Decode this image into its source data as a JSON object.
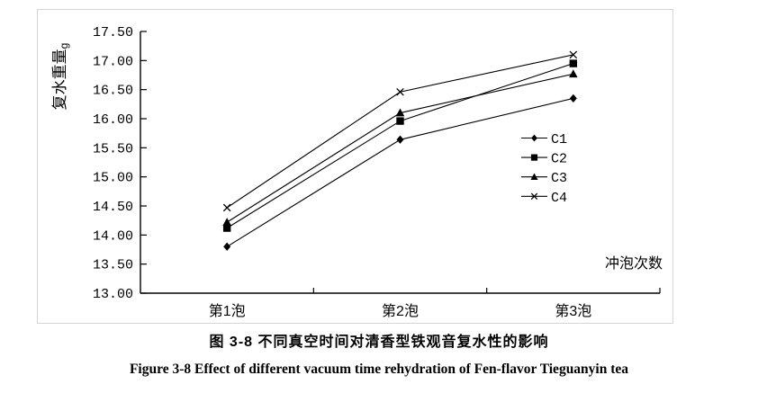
{
  "figure": {
    "caption_zh": "图 3-8  不同真空时间对清香型铁观音复水性的影响",
    "caption_en": "Figure 3-8 Effect of different vacuum time rehydration of Fen-flavor Tieguanyin tea"
  },
  "chart_data": {
    "type": "line",
    "title": "",
    "ylabel": "复水重量",
    "ylabel_unit": "g",
    "xlabel": "冲泡次数",
    "categories": [
      "第1泡",
      "第2泡",
      "第3泡"
    ],
    "series": [
      {
        "name": "C1",
        "marker": "diamond",
        "values": [
          13.8,
          15.64,
          16.35
        ]
      },
      {
        "name": "C2",
        "marker": "square",
        "values": [
          14.12,
          15.96,
          16.95
        ]
      },
      {
        "name": "C3",
        "marker": "triangle",
        "values": [
          14.22,
          16.1,
          16.77
        ]
      },
      {
        "name": "C4",
        "marker": "x",
        "values": [
          14.47,
          16.46,
          17.1
        ]
      }
    ],
    "ylim": [
      13.0,
      17.5
    ],
    "ytick_step": 0.5,
    "ytick_labels": [
      "17.50",
      "17.00",
      "16.50",
      "16.00",
      "15.50",
      "15.00",
      "14.50",
      "14.00",
      "13.50",
      "13.00"
    ],
    "grid": false,
    "legend_position": "right-middle",
    "line_color": "#000000",
    "text_color": "#000000",
    "frame_border_color": "#d5d5d5"
  }
}
